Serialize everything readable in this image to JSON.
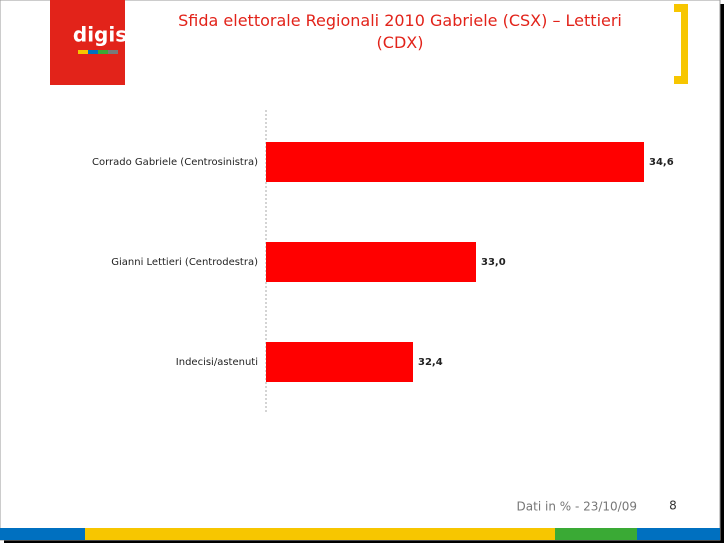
{
  "logo": "digis",
  "footer": "Dati in % - 23/10/09",
  "page_number": "8",
  "chart_data": {
    "type": "hbar",
    "title": "Sfida elettorale Regionali 2010 Gabriele (CSX) – Lettieri (CDX)",
    "categories": [
      "Corrado Gabriele (Centrosinistra)",
      "Gianni Lettieri (Centrodestra)",
      "Indecisi/astenuti"
    ],
    "values": [
      34.6,
      33.0,
      32.4
    ],
    "value_labels": [
      "34,6",
      "33,0",
      "32,4"
    ],
    "color": "#ff0000",
    "xlim": [
      31,
      35
    ]
  }
}
